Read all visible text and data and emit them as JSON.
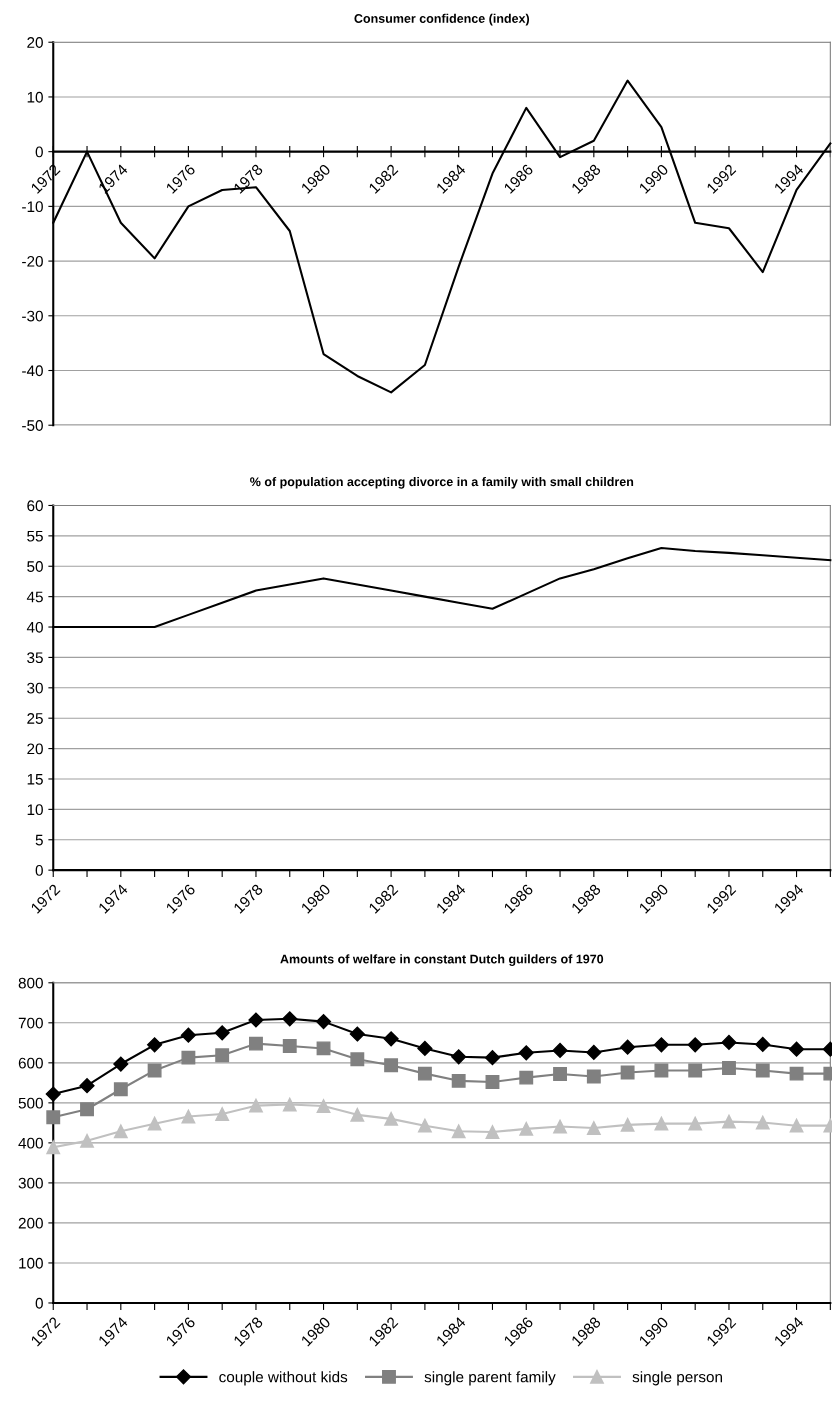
{
  "chart_data": [
    {
      "type": "line",
      "title": "Consumer confidence (index)",
      "categories": [
        "1972",
        null,
        "1974",
        null,
        "1976",
        null,
        "1978",
        null,
        "1980",
        null,
        "1982",
        null,
        "1984",
        null,
        "1986",
        null,
        "1988",
        null,
        "1990",
        null,
        "1992",
        null,
        "1994",
        null
      ],
      "series": [
        {
          "color": "#000000",
          "values": [
            -13,
            0,
            -13,
            -19.5,
            -10,
            -7,
            -6.5,
            -14.5,
            -37,
            -41,
            -44,
            -39,
            -21,
            -4,
            8,
            -1,
            2,
            13,
            4.5,
            -13,
            -14,
            -22,
            -7,
            1.5
          ]
        }
      ],
      "ylim": [
        -50,
        20
      ],
      "yticks": [
        -50,
        -40,
        -30,
        -20,
        -10,
        0,
        10,
        20
      ],
      "grid": "y",
      "marker": "none"
    },
    {
      "type": "line",
      "title": "% of population accepting divorce in a family with small children",
      "categories": [
        "1972",
        null,
        "1974",
        null,
        "1976",
        null,
        "1978",
        null,
        "1980",
        null,
        "1982",
        null,
        "1984",
        null,
        "1986",
        null,
        "1988",
        null,
        "1990",
        null,
        "1992",
        null,
        "1994",
        null
      ],
      "series": [
        {
          "color": "#000000",
          "values": [
            40,
            40,
            40,
            40,
            42,
            44,
            46,
            47,
            48,
            47,
            46,
            45,
            44,
            43,
            45.5,
            48,
            49.5,
            51.3,
            53,
            52.5,
            52.2,
            51.8,
            51.4,
            51
          ]
        }
      ],
      "ylim": [
        0,
        60
      ],
      "yticks": [
        0,
        5,
        10,
        15,
        20,
        25,
        30,
        35,
        40,
        45,
        50,
        55,
        60
      ],
      "grid": "y",
      "marker": "none"
    },
    {
      "type": "line",
      "title": "Amounts of welfare in constant Dutch guilders of 1970",
      "categories": [
        "1972",
        null,
        "1974",
        null,
        "1976",
        null,
        "1978",
        null,
        "1980",
        null,
        "1982",
        null,
        "1984",
        null,
        "1986",
        null,
        "1988",
        null,
        "1990",
        null,
        "1992",
        null,
        "1994",
        null
      ],
      "series": [
        {
          "name": "couple without kids",
          "color": "#000000",
          "marker": "diamond",
          "values": [
            522,
            543,
            597,
            645,
            669,
            675,
            707,
            710,
            703,
            672,
            660,
            636,
            615,
            613,
            625,
            631,
            626,
            639,
            645,
            645,
            651,
            646,
            634,
            634
          ]
        },
        {
          "name": "single parent family",
          "color": "#808080",
          "marker": "square",
          "values": [
            464,
            484,
            534,
            581,
            613,
            619,
            648,
            642,
            636,
            609,
            594,
            573,
            555,
            552,
            563,
            572,
            566,
            576,
            581,
            581,
            587,
            581,
            573,
            573
          ]
        },
        {
          "name": "single person",
          "color": "#c0c0c0",
          "marker": "triangle",
          "values": [
            389,
            405,
            429,
            448,
            466,
            472,
            493,
            496,
            492,
            470,
            460,
            443,
            429,
            427,
            435,
            441,
            437,
            445,
            448,
            448,
            453,
            451,
            443,
            443
          ]
        }
      ],
      "ylim": [
        0,
        800
      ],
      "yticks": [
        0,
        100,
        200,
        300,
        400,
        500,
        600,
        700,
        800
      ],
      "grid": "y",
      "legend": "bottom"
    }
  ]
}
